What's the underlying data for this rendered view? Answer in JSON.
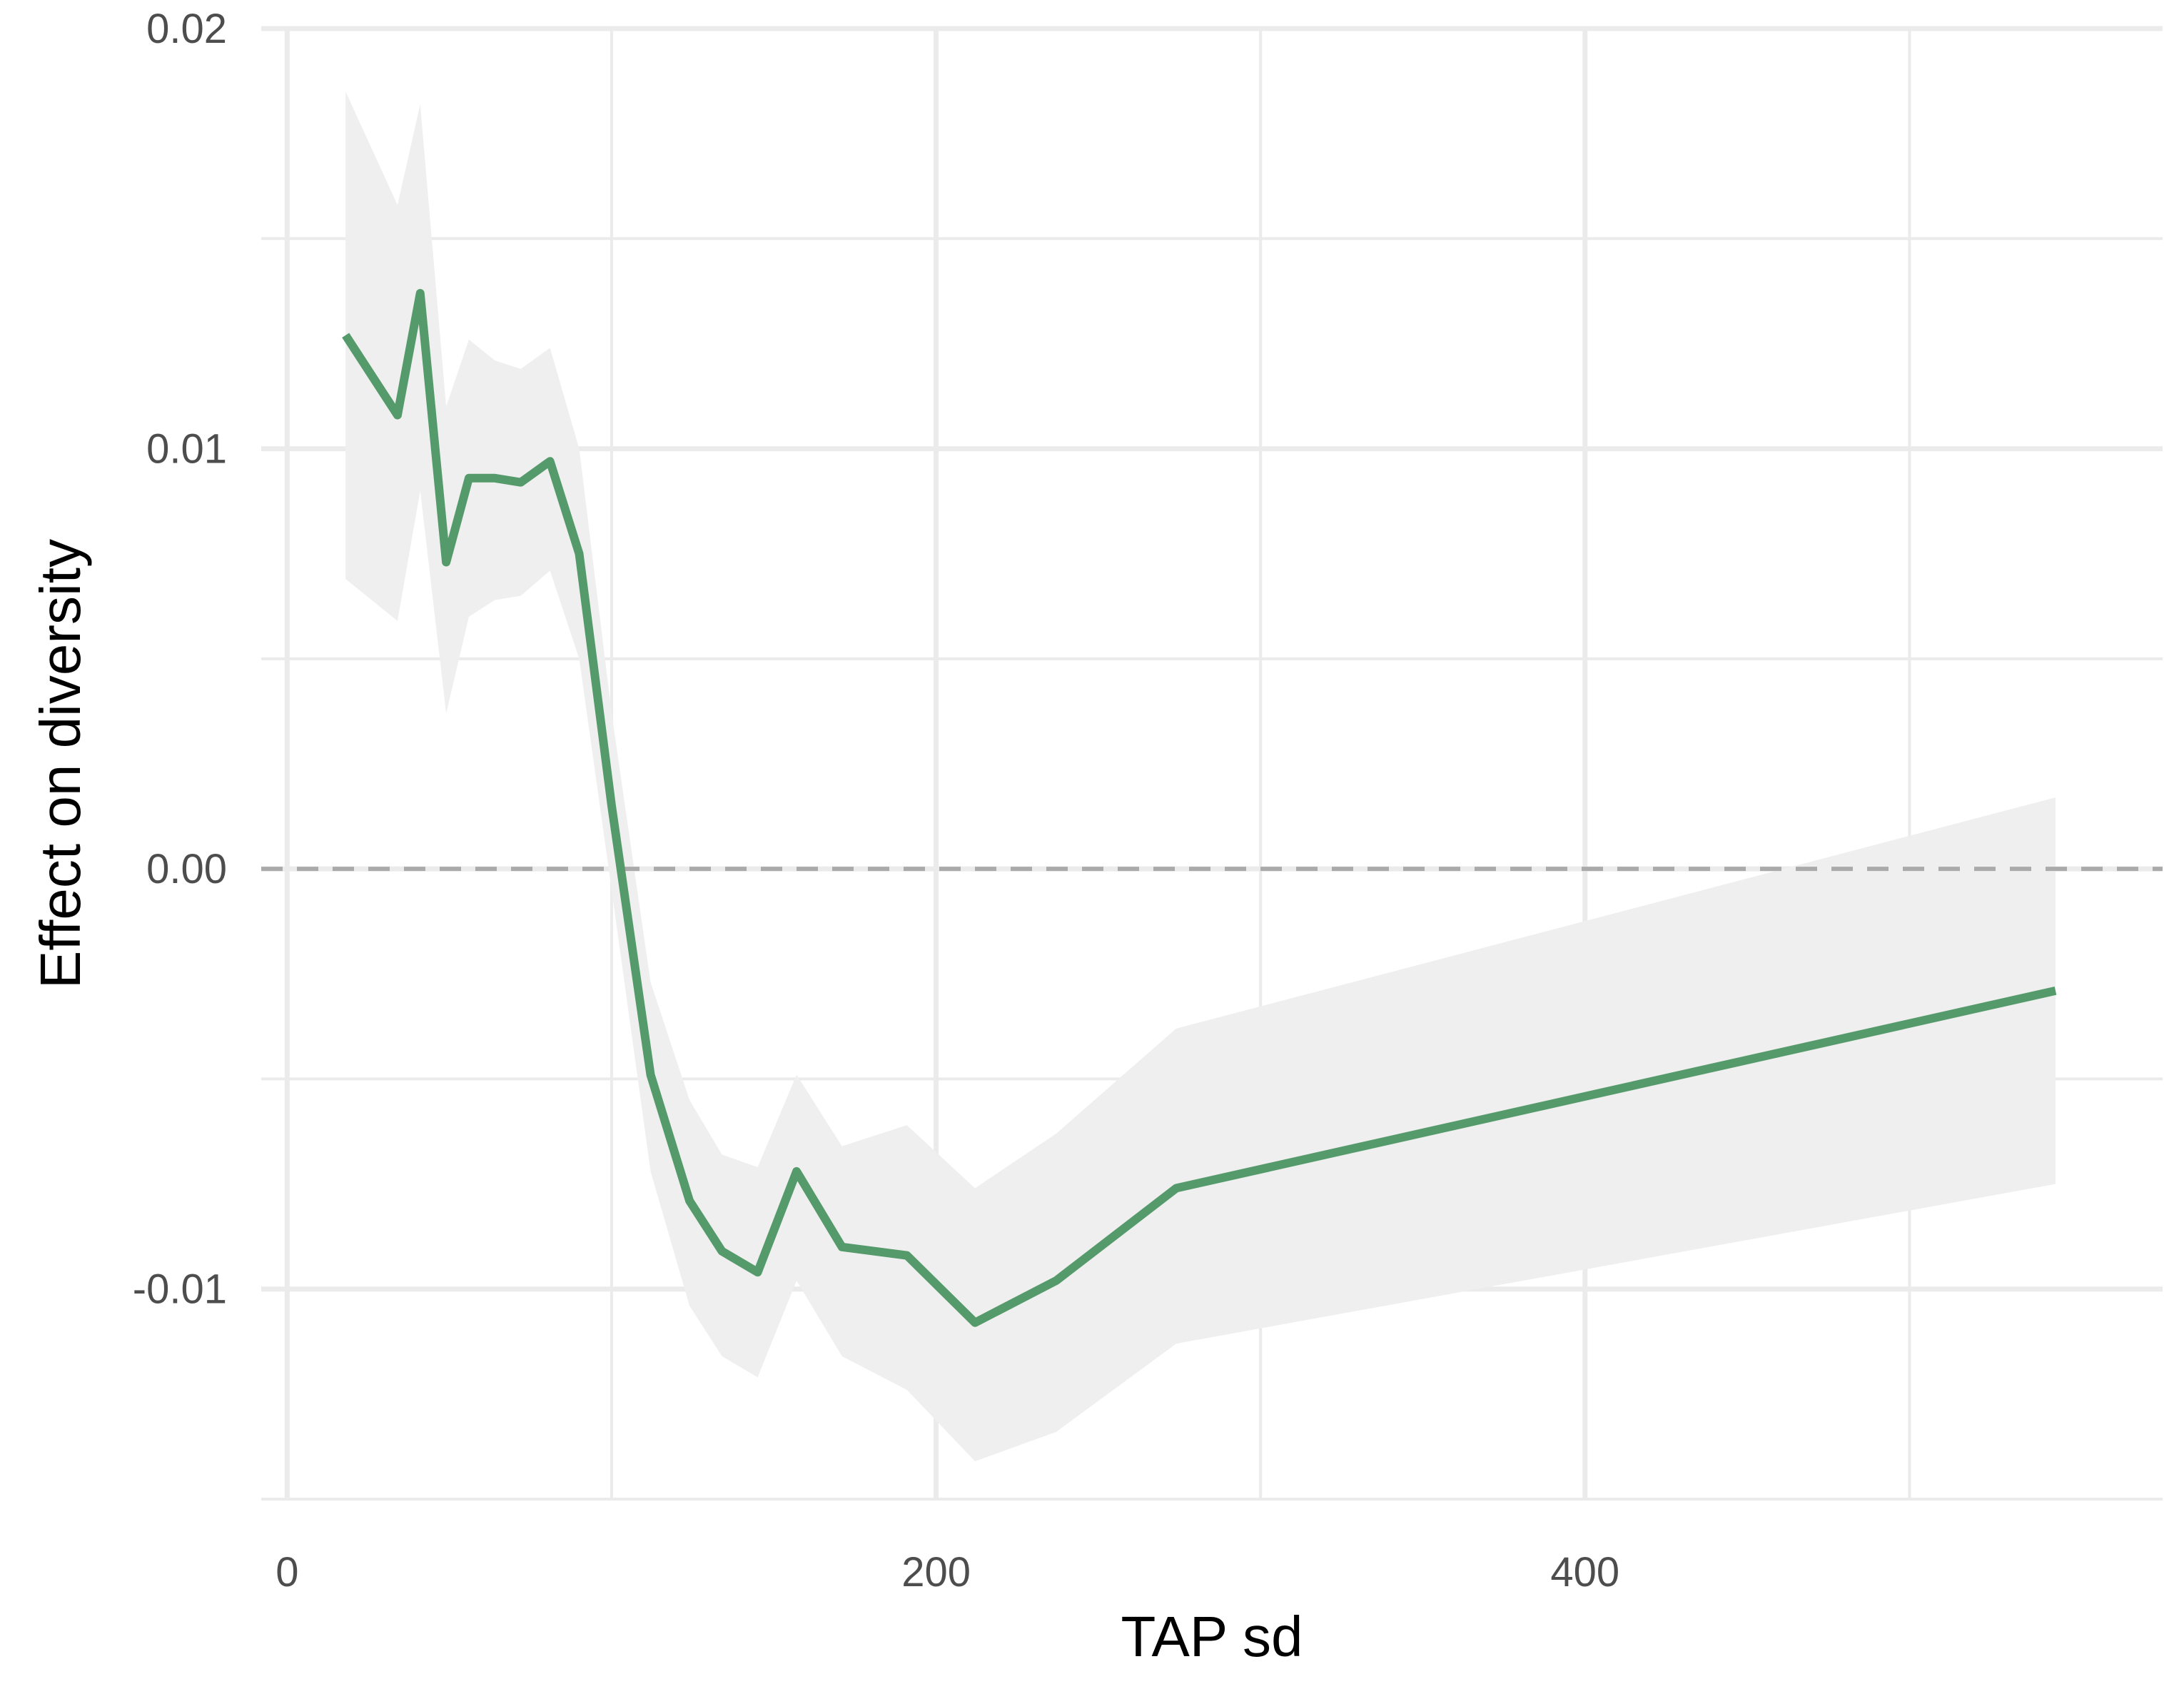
{
  "chart_data": {
    "type": "line",
    "title": "",
    "xlabel": "TAP sd",
    "ylabel": "Effect on diversity",
    "xlim": [
      -8,
      578
    ],
    "ylim": [
      -0.015,
      0.02
    ],
    "x_ticks": [
      0,
      200,
      400
    ],
    "x_tick_labels": [
      "0",
      "200",
      "400"
    ],
    "y_ticks": [
      -0.01,
      0.0,
      0.01,
      0.02
    ],
    "y_tick_labels": [
      "-0.01",
      "0.00",
      "0.01",
      "0.02"
    ],
    "grid": true,
    "reference_line": {
      "y": 0,
      "style": "dashed",
      "color": "#aaaaaa"
    },
    "colors": {
      "line": "#559a6b",
      "band": "#efefef",
      "grid": "#ebebeb"
    },
    "series": [
      {
        "x": [
          18,
          34,
          41,
          49,
          56,
          64,
          72,
          81,
          90,
          100,
          112,
          124,
          134,
          145,
          157,
          171,
          191,
          212,
          237,
          274,
          545
        ],
        "y": [
          0.0127,
          0.0108,
          0.0137,
          0.0073,
          0.0093,
          0.0093,
          0.0092,
          0.0097,
          0.0075,
          0.0015,
          -0.0049,
          -0.0079,
          -0.0091,
          -0.0096,
          -0.0072,
          -0.009,
          -0.0092,
          -0.0108,
          -0.0098,
          -0.0076,
          -0.0029
        ],
        "lower": [
          0.0069,
          0.0059,
          0.009,
          0.0037,
          0.006,
          0.0064,
          0.0065,
          0.0071,
          0.005,
          -0.0005,
          -0.0072,
          -0.0104,
          -0.0116,
          -0.0121,
          -0.0098,
          -0.0116,
          -0.0124,
          -0.0141,
          -0.0134,
          -0.0113,
          -0.0075
        ],
        "upper": [
          0.0185,
          0.0158,
          0.0182,
          0.011,
          0.0126,
          0.0121,
          0.0119,
          0.0124,
          0.01,
          0.0037,
          -0.0027,
          -0.0055,
          -0.0068,
          -0.0071,
          -0.0049,
          -0.0066,
          -0.0061,
          -0.0076,
          -0.0063,
          -0.0038,
          0.0017
        ]
      }
    ]
  }
}
